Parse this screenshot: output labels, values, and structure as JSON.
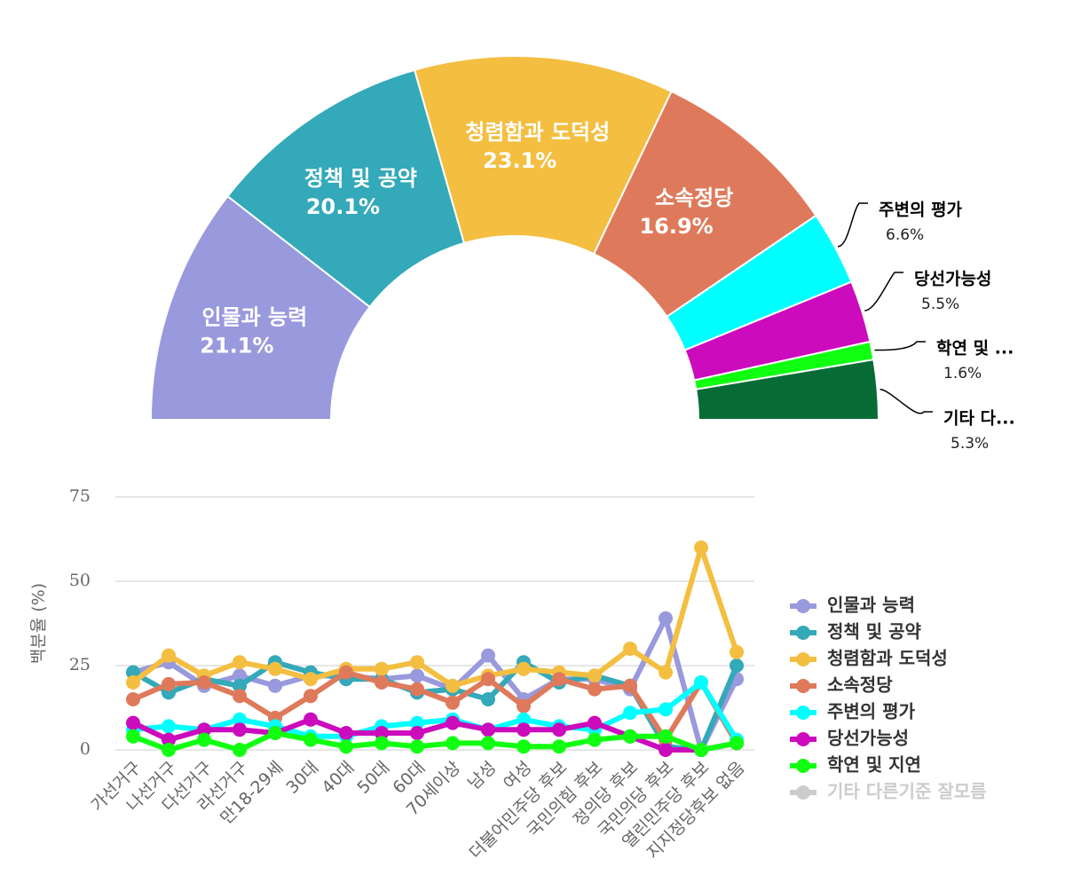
{
  "chart_data": [
    {
      "type": "pie",
      "categories": [
        "인물과 능력",
        "정책 및 공약",
        "청렴함과 도덕성",
        "소속정당",
        "주변의 평가",
        "당선가능성",
        "학연 및 ...",
        "기타 다..."
      ],
      "values": [
        21.1,
        20.1,
        23.1,
        16.9,
        6.6,
        5.5,
        1.6,
        5.3
      ],
      "value_labels": [
        "21.1%",
        "20.1%",
        "23.1%",
        "16.9%",
        "6.6%",
        "5.5%",
        "1.6%",
        "5.3%"
      ],
      "colors": [
        "#9999dd",
        "#33a9b9",
        "#f4be41",
        "#de7a5b",
        "#00ffff",
        "#cc0bbd",
        "#11ff11",
        "#076b35"
      ]
    },
    {
      "type": "line",
      "categories": [
        "가선거구",
        "나선거구",
        "다선거구",
        "라선거구",
        "만18-29세",
        "30대",
        "40대",
        "50대",
        "60대",
        "70세이상",
        "남성",
        "여성",
        "더불어민주당 후보",
        "국민의힘 후보",
        "정의당 후보",
        "국민의당 후보",
        "열린민주당 후보",
        "지지정당후보 없음"
      ],
      "ylabel": "백분율 (%)",
      "ylim": [
        0,
        75
      ],
      "yticks": [
        0,
        25,
        50,
        75
      ],
      "grid": true,
      "series": [
        {
          "name": "인물과 능력",
          "color": "#9999dd",
          "values": [
            23,
            26,
            19,
            22,
            19,
            22,
            22,
            21,
            22,
            18,
            28,
            15,
            21,
            21,
            18,
            39,
            0,
            21
          ]
        },
        {
          "name": "정책 및 공약",
          "color": "#33a9b9",
          "values": [
            23,
            17,
            21,
            19,
            26,
            23,
            21,
            21,
            17,
            18,
            15,
            26,
            20,
            22,
            19,
            1,
            0,
            25
          ]
        },
        {
          "name": "청렴함과 도덕성",
          "color": "#f4be41",
          "values": [
            20,
            28,
            22,
            26,
            24,
            21,
            24,
            24,
            26,
            19,
            22,
            24,
            23,
            22,
            30,
            23,
            60,
            29
          ]
        },
        {
          "name": "소속정당",
          "color": "#de7a5b",
          "values": [
            15,
            19.5,
            20,
            16,
            9.5,
            16,
            23,
            20,
            18,
            14,
            21,
            13,
            21,
            18,
            19,
            3,
            20,
            2
          ]
        },
        {
          "name": "주변의 평가",
          "color": "#00ffff",
          "values": [
            6,
            7,
            6,
            9,
            7,
            4,
            4,
            7,
            8,
            9,
            6,
            9,
            7,
            6,
            11,
            12,
            20,
            3
          ]
        },
        {
          "name": "당선가능성",
          "color": "#cc0bbd",
          "values": [
            8,
            3,
            6,
            6,
            5,
            9,
            5,
            5,
            5,
            8,
            6,
            6,
            6,
            8,
            4,
            0,
            0,
            2
          ]
        },
        {
          "name": "학연 및 지연",
          "color": "#11ff11",
          "values": [
            4,
            0,
            3,
            0,
            5,
            3,
            1,
            2,
            1,
            2,
            2,
            1,
            1,
            3,
            4,
            4,
            0,
            2
          ]
        },
        {
          "name": "기타 다른기준 잘모름",
          "color": "#cccccc",
          "visible": false
        }
      ]
    }
  ]
}
